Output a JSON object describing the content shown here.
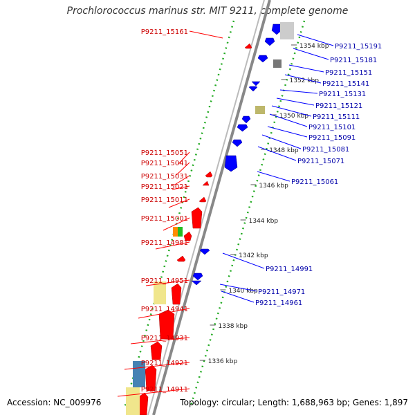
{
  "title": "Prochlorococcus marinus str. MIT 9211, complete genome",
  "footer": {
    "accession": "Accession: NC_009976",
    "topology": "Topology: circular; Length: 1,688,963 bp; Genes: 1,897"
  },
  "colors": {
    "forward": "#ff0000",
    "reverse": "#0000ff",
    "forward_label": "#cc0000",
    "reverse_label": "#0000aa",
    "tick": "#22aa22",
    "backbone": "#888888"
  },
  "ruler": {
    "ticks": [
      "1354 kbp",
      "1352 kbp",
      "1350 kbp",
      "1348 kbp",
      "1346 kbp",
      "1344 kbp",
      "1342 kbp",
      "1340 kbp",
      "1338 kbp",
      "1336 kbp"
    ]
  },
  "forward_genes": {
    "labels": [
      "P9211_15161",
      "P9211_15051",
      "P9211_15041",
      "P9211_15031",
      "P9211_15021",
      "P9211_15011",
      "P9211_15001",
      "P9211_14981",
      "P9211_14951",
      "P9211_14941",
      "P9211_14931",
      "P9211_14921",
      "P9211_14911"
    ]
  },
  "reverse_genes": {
    "labels": [
      "P9211_15191",
      "P9211_15181",
      "P9211_15151",
      "P9211_15141",
      "P9211_15131",
      "P9211_15121",
      "P9211_15111",
      "P9211_15101",
      "P9211_15091",
      "P9211_15081",
      "P9211_15071",
      "P9211_15061",
      "P9211_14991",
      "P9211_14971",
      "P9211_14961"
    ]
  }
}
